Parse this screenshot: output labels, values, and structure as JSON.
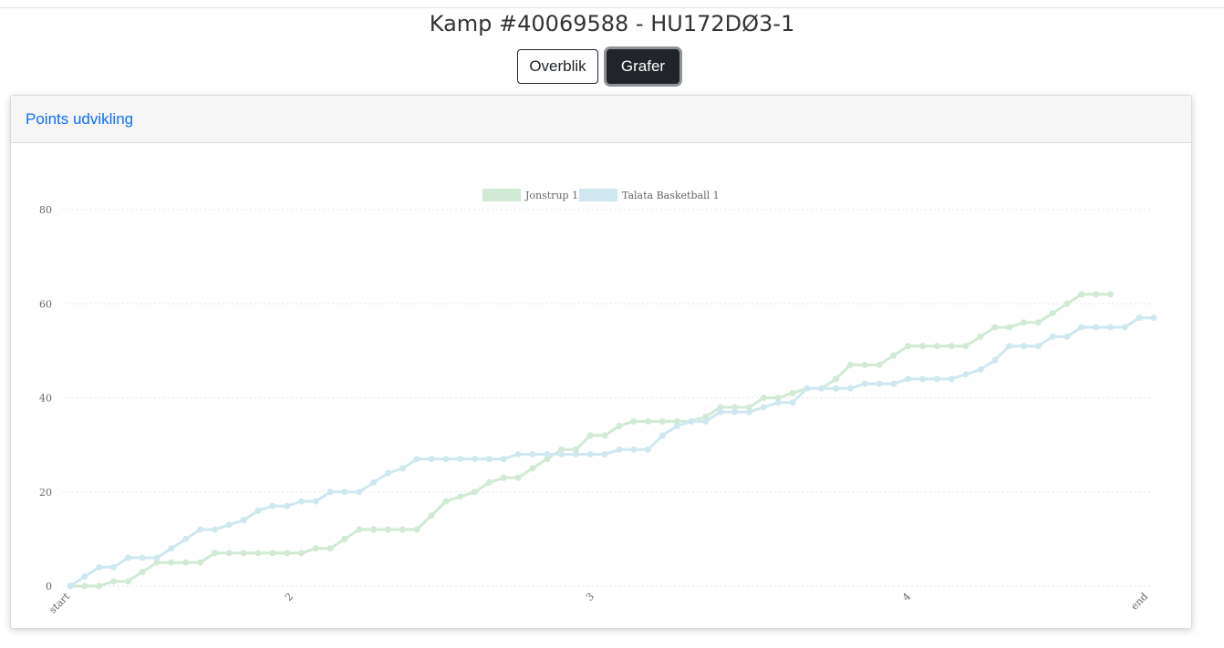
{
  "page": {
    "title": "Kamp #40069588 - HU172DØ3-1"
  },
  "nav": {
    "overview_label": "Overblik",
    "graphs_label": "Grafer"
  },
  "card": {
    "title": "Points udvikling"
  },
  "colors": {
    "accent": "#0d6efd",
    "dark": "#212529",
    "series1": "#d1ead4",
    "series2": "#cfe8f0"
  },
  "chart_data": {
    "type": "line",
    "x_ticks": [
      "start",
      "2",
      "3",
      "4",
      "end"
    ],
    "ylim": [
      0,
      80
    ],
    "y_ticks": [
      "80",
      "60",
      "40",
      "20",
      "0"
    ],
    "grid": true,
    "legend_position": "top",
    "series": [
      {
        "name": "Jonstrup 1",
        "color": "#d1ead4",
        "values": [
          0,
          0,
          0,
          1,
          1,
          3,
          5,
          5,
          5,
          5,
          7,
          7,
          7,
          7,
          7,
          7,
          7,
          8,
          8,
          10,
          12,
          12,
          12,
          12,
          12,
          15,
          18,
          19,
          20,
          22,
          23,
          23,
          25,
          27,
          29,
          29,
          32,
          32,
          34,
          35,
          35,
          35,
          35,
          35,
          36,
          38,
          38,
          38,
          40,
          40,
          41,
          42,
          42,
          44,
          47,
          47,
          47,
          49,
          51,
          51,
          51,
          51,
          51,
          53,
          55,
          55,
          56,
          56,
          58,
          60,
          62,
          62,
          62
        ]
      },
      {
        "name": "Talata Basketball 1",
        "color": "#cfe8f0",
        "values": [
          0,
          2,
          4,
          4,
          6,
          6,
          6,
          8,
          10,
          12,
          12,
          13,
          14,
          16,
          17,
          17,
          18,
          18,
          20,
          20,
          20,
          22,
          24,
          25,
          27,
          27,
          27,
          27,
          27,
          27,
          27,
          28,
          28,
          28,
          28,
          28,
          28,
          28,
          29,
          29,
          29,
          32,
          34,
          35,
          35,
          37,
          37,
          37,
          38,
          39,
          39,
          42,
          42,
          42,
          42,
          43,
          43,
          43,
          44,
          44,
          44,
          44,
          45,
          46,
          48,
          51,
          51,
          51,
          53,
          53,
          55,
          55,
          55,
          55,
          57,
          57
        ]
      }
    ]
  }
}
